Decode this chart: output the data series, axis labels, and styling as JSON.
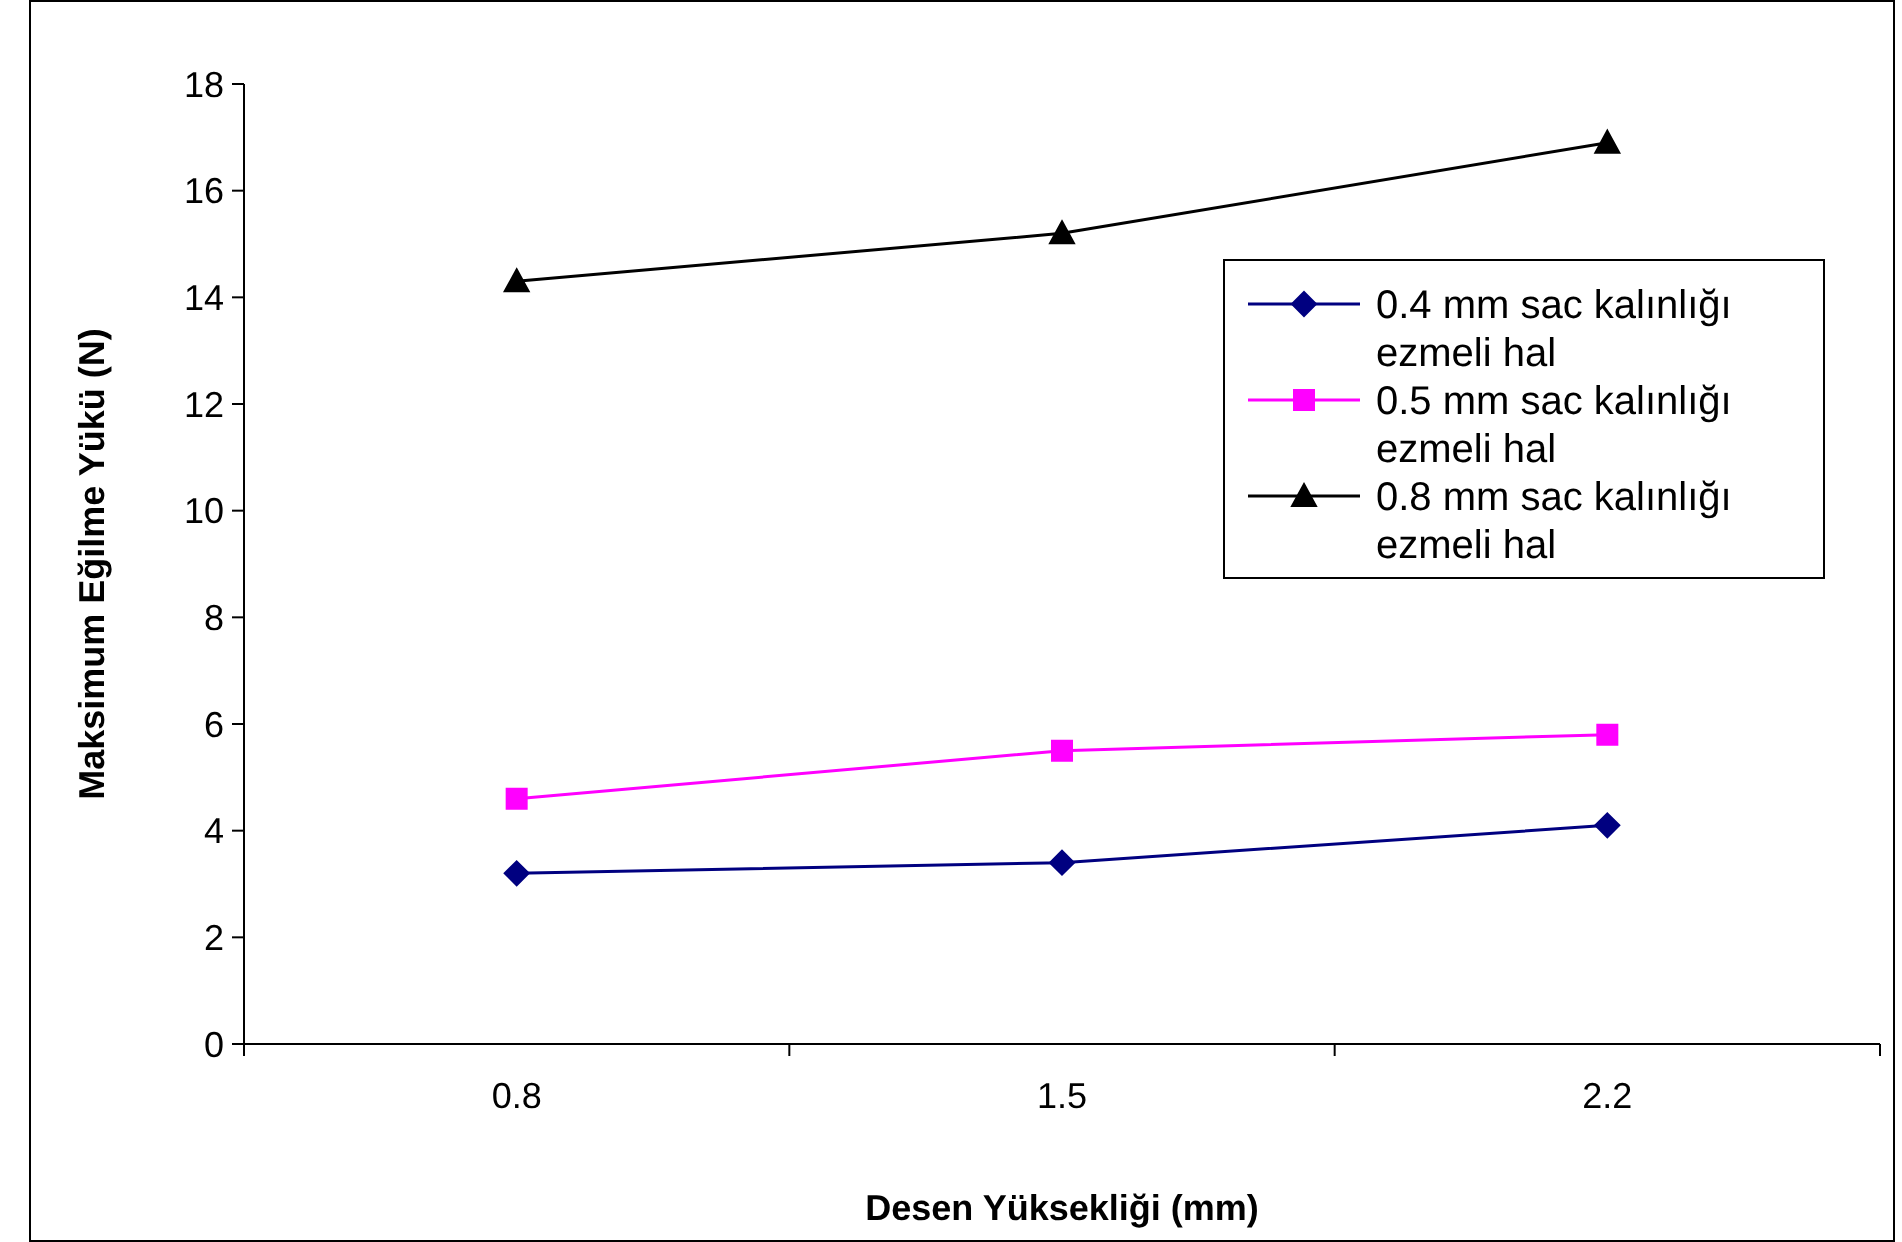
{
  "chart_data": {
    "type": "line",
    "xlabel": "Desen Yüksekliği (mm)",
    "ylabel": "Maksimum Eğilme Yükü (N)",
    "categories": [
      "0.8",
      "1.5",
      "2.2"
    ],
    "ylim": [
      0,
      18
    ],
    "yticks": [
      0,
      2,
      4,
      6,
      8,
      10,
      12,
      14,
      16,
      18
    ],
    "grid": false,
    "legend": "right",
    "line_style": "solid",
    "series": [
      {
        "name": "0.4 mm sac kalınlığı ezmeli hal",
        "color": "#000080",
        "marker": "diamond",
        "values": [
          3.2,
          3.4,
          4.1
        ]
      },
      {
        "name": "0.5 mm sac kalınlığı ezmeli hal",
        "color": "#ff00ff",
        "marker": "square",
        "values": [
          4.6,
          5.5,
          5.8
        ]
      },
      {
        "name": "0.8 mm sac kalınlığı ezmeli hal",
        "color": "#000000",
        "marker": "triangle",
        "values": [
          14.3,
          15.2,
          16.9
        ]
      }
    ]
  }
}
